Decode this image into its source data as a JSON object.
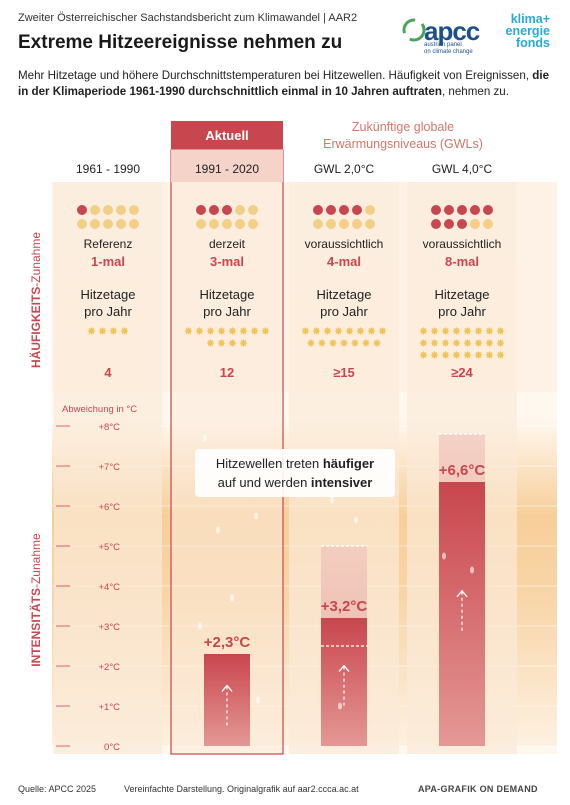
{
  "header": {
    "supertitle": "Zweiter Österreichischer Sachstandsbericht zum Klimawandel | AAR2",
    "title": "Extreme Hitzeereignisse nehmen zu",
    "intro_plain": "Mehr Hitzetage und höhere Durchschnittstemperaturen bei Hitzewellen. Häufigkeit von Ereignissen, ",
    "intro_bold": "die in der Klimaperiode 1961-1990 durchschnittlich einmal in 10 Jahren auftraten",
    "intro_end": ", nehmen zu."
  },
  "logos": {
    "apcc_mark": "apcc",
    "apcc_sub_1": "austrian panel",
    "apcc_sub_2": "on climate change",
    "kef_1": "klima+",
    "kef_2": "energie",
    "kef_3": "fonds"
  },
  "footer": {
    "source": "Quelle: APCC 2025",
    "note": "Vereinfachte Darstellung. Originalgrafik auf aar2.ccca.ac.at",
    "credit": "APA-GRAFIK ON DEMAND"
  },
  "colors": {
    "dark_red": "#c8474f",
    "bar_red": "#c9464e",
    "salmon": "#e49895",
    "light_salmon": "#eec2bb",
    "dot_light": "#f2cf86",
    "star": "#f1c45b",
    "heat_band": "#f5c78a",
    "column_bg": "#fbead8",
    "accent_text": "#c8474f"
  },
  "chart_data": {
    "type": "bar",
    "tag_current": "Aktuell",
    "future_heading": "Zukünftige globale Erwärmungsniveaus (GWLs)",
    "frequency_axis_label": "HÄUFIGKEITS-Zunahme",
    "intensity_axis_label": "INTENSITÄTS-Zunahme",
    "y_unit_label": "Abweichung in  °C",
    "hitzetage_label_1": "Hitzetage",
    "hitzetage_label_2": "pro Jahr",
    "yticks": [
      "0°C",
      "+1°C",
      "+2°C",
      "+3°C",
      "+4°C",
      "+5°C",
      "+6°C",
      "+7°C",
      "+8°C"
    ],
    "ylim": [
      0,
      8
    ],
    "annotation_1": "Hitzewellen treten ",
    "annotation_bold_1": "häufiger",
    "annotation_2": "auf und werden ",
    "annotation_bold_2": "intensiver",
    "categories": [
      "1961 - 1990",
      "1991 - 2020",
      "GWL 2,0°C",
      "GWL 4,0°C"
    ],
    "frequency_descriptor": [
      "Referenz",
      "derzeit",
      "voraussichtlich",
      "voraussichtlich"
    ],
    "frequency_label": [
      "1-mal",
      "3-mal",
      "4-mal",
      "8-mal"
    ],
    "frequency_per_10_years": [
      1,
      3,
      4,
      8
    ],
    "heat_days_label": [
      "4",
      "12",
      "≥15",
      "≥24"
    ],
    "heat_days": [
      4,
      12,
      15,
      24
    ],
    "intensity_label": [
      "",
      "+2,3°C",
      "+3,2°C",
      "+6,6°C"
    ],
    "intensity_values": [
      0,
      2.3,
      3.2,
      6.6
    ],
    "intensity_range_top": [
      0,
      0,
      5,
      7.8
    ]
  }
}
